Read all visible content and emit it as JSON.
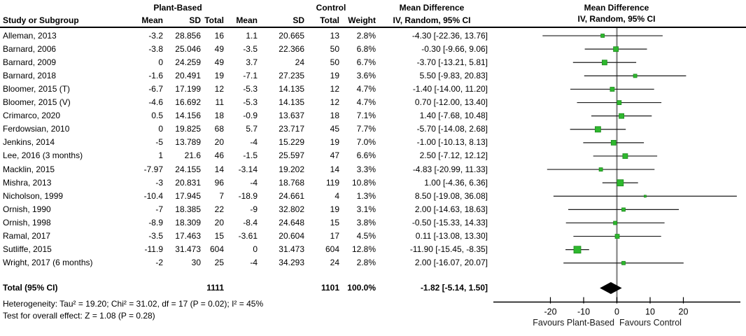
{
  "header": {
    "group1": "Plant-Based",
    "group2": "Control",
    "md_title": "Mean Difference",
    "md_subtitle": "IV, Random, 95% CI",
    "plot_title": "Mean Difference",
    "plot_subtitle": "IV, Random, 95% CI",
    "col_study": "Study or Subgroup",
    "col_mean": "Mean",
    "col_sd": "SD",
    "col_total": "Total",
    "col_weight": "Weight"
  },
  "colors": {
    "marker_green": "#2eb82e",
    "marker_green_border": "#1e8a1e",
    "zero_line_gray": "#7d7d7d",
    "ci_line": "#1a1a1a",
    "diamond": "#000000"
  },
  "total": {
    "label": "Total (95% CI)",
    "n1": "1111",
    "n2": "1101",
    "weight": "100.0%",
    "ci": "-1.82 [-5.14, 1.50]",
    "md": -1.82,
    "lo": -5.14,
    "hi": 1.5
  },
  "footer": {
    "heterogeneity": "Heterogeneity: Tau² = 19.20; Chi² = 31.02, df = 17 (P = 0.02); I² = 45%",
    "overall_effect": "Test for overall effect: Z = 1.08 (P = 0.28)"
  },
  "axis": {
    "ticks": [
      -20,
      -10,
      0,
      10,
      20
    ],
    "favours_left": "Favours Plant-Based",
    "favours_right": "Favours Control"
  },
  "chart_data": {
    "type": "forest",
    "title": "Mean Difference",
    "estimator": "IV, Random, 95% CI",
    "xlim": [
      -25,
      38
    ],
    "zero_line": 0,
    "x_ticks": [
      -20,
      -10,
      0,
      10,
      20
    ],
    "studies": [
      {
        "name": "Alleman, 2013",
        "pb": [
          "-3.2",
          "28.856",
          "16"
        ],
        "ct": [
          "1.1",
          "20.665",
          "13"
        ],
        "weight": "2.8%",
        "ci": "-4.30 [-22.36, 13.76]",
        "md": -4.3,
        "lo": -22.36,
        "hi": 13.76,
        "w": 2.8
      },
      {
        "name": "Barnard, 2006",
        "pb": [
          "-3.8",
          "25.046",
          "49"
        ],
        "ct": [
          "-3.5",
          "22.366",
          "50"
        ],
        "weight": "6.8%",
        "ci": "-0.30 [-9.66, 9.06]",
        "md": -0.3,
        "lo": -9.66,
        "hi": 9.06,
        "w": 6.8
      },
      {
        "name": "Barnard, 2009",
        "pb": [
          "0",
          "24.259",
          "49"
        ],
        "ct": [
          "3.7",
          "24",
          "50"
        ],
        "weight": "6.7%",
        "ci": "-3.70 [-13.21, 5.81]",
        "md": -3.7,
        "lo": -13.21,
        "hi": 5.81,
        "w": 6.7
      },
      {
        "name": "Barnard, 2018",
        "pb": [
          "-1.6",
          "20.491",
          "19"
        ],
        "ct": [
          "-7.1",
          "27.235",
          "19"
        ],
        "weight": "3.6%",
        "ci": "5.50 [-9.83, 20.83]",
        "md": 5.5,
        "lo": -9.83,
        "hi": 20.83,
        "w": 3.6
      },
      {
        "name": "Bloomer, 2015 (T)",
        "pb": [
          "-6.7",
          "17.199",
          "12"
        ],
        "ct": [
          "-5.3",
          "14.135",
          "12"
        ],
        "weight": "4.7%",
        "ci": "-1.40 [-14.00, 11.20]",
        "md": -1.4,
        "lo": -14.0,
        "hi": 11.2,
        "w": 4.7
      },
      {
        "name": "Bloomer, 2015 (V)",
        "pb": [
          "-4.6",
          "16.692",
          "11"
        ],
        "ct": [
          "-5.3",
          "14.135",
          "12"
        ],
        "weight": "4.7%",
        "ci": "0.70 [-12.00, 13.40]",
        "md": 0.7,
        "lo": -12.0,
        "hi": 13.4,
        "w": 4.7
      },
      {
        "name": "Crimarco, 2020",
        "pb": [
          "0.5",
          "14.156",
          "18"
        ],
        "ct": [
          "-0.9",
          "13.637",
          "18"
        ],
        "weight": "7.1%",
        "ci": "1.40 [-7.68, 10.48]",
        "md": 1.4,
        "lo": -7.68,
        "hi": 10.48,
        "w": 7.1
      },
      {
        "name": "Ferdowsian, 2010",
        "pb": [
          "0",
          "19.825",
          "68"
        ],
        "ct": [
          "5.7",
          "23.717",
          "45"
        ],
        "weight": "7.7%",
        "ci": "-5.70 [-14.08, 2.68]",
        "md": -5.7,
        "lo": -14.08,
        "hi": 2.68,
        "w": 7.7
      },
      {
        "name": "Jenkins, 2014",
        "pb": [
          "-5",
          "13.789",
          "20"
        ],
        "ct": [
          "-4",
          "15.229",
          "19"
        ],
        "weight": "7.0%",
        "ci": "-1.00 [-10.13, 8.13]",
        "md": -1.0,
        "lo": -10.13,
        "hi": 8.13,
        "w": 7.0
      },
      {
        "name": "Lee, 2016 (3 months)",
        "pb": [
          "1",
          "21.6",
          "46"
        ],
        "ct": [
          "-1.5",
          "25.597",
          "47"
        ],
        "weight": "6.6%",
        "ci": "2.50 [-7.12, 12.12]",
        "md": 2.5,
        "lo": -7.12,
        "hi": 12.12,
        "w": 6.6
      },
      {
        "name": "Macklin, 2015",
        "pb": [
          "-7.97",
          "24.155",
          "14"
        ],
        "ct": [
          "-3.14",
          "19.202",
          "14"
        ],
        "weight": "3.3%",
        "ci": "-4.83 [-20.99, 11.33]",
        "md": -4.83,
        "lo": -20.99,
        "hi": 11.33,
        "w": 3.3
      },
      {
        "name": "Mishra, 2013",
        "pb": [
          "-3",
          "20.831",
          "96"
        ],
        "ct": [
          "-4",
          "18.768",
          "119"
        ],
        "weight": "10.8%",
        "ci": "1.00 [-4.36, 6.36]",
        "md": 1.0,
        "lo": -4.36,
        "hi": 6.36,
        "w": 10.8
      },
      {
        "name": "Nicholson, 1999",
        "pb": [
          "-10.4",
          "17.945",
          "7"
        ],
        "ct": [
          "-18.9",
          "24.661",
          "4"
        ],
        "weight": "1.3%",
        "ci": "8.50 [-19.08, 36.08]",
        "md": 8.5,
        "lo": -19.08,
        "hi": 36.08,
        "w": 1.3
      },
      {
        "name": "Ornish, 1990",
        "pb": [
          "-7",
          "18.385",
          "22"
        ],
        "ct": [
          "-9",
          "32.802",
          "19"
        ],
        "weight": "3.1%",
        "ci": "2.00 [-14.63, 18.63]",
        "md": 2.0,
        "lo": -14.63,
        "hi": 18.63,
        "w": 3.1
      },
      {
        "name": "Ornish, 1998",
        "pb": [
          "-8.9",
          "18.309",
          "20"
        ],
        "ct": [
          "-8.4",
          "24.648",
          "15"
        ],
        "weight": "3.8%",
        "ci": "-0.50 [-15.33, 14.33]",
        "md": -0.5,
        "lo": -15.33,
        "hi": 14.33,
        "w": 3.8
      },
      {
        "name": "Ramal, 2017",
        "pb": [
          "-3.5",
          "17.463",
          "15"
        ],
        "ct": [
          "-3.61",
          "20.604",
          "17"
        ],
        "weight": "4.5%",
        "ci": "0.11 [-13.08, 13.30]",
        "md": 0.11,
        "lo": -13.08,
        "hi": 13.3,
        "w": 4.5
      },
      {
        "name": "Sutliffe, 2015",
        "pb": [
          "-11.9",
          "31.473",
          "604"
        ],
        "ct": [
          "0",
          "31.473",
          "604"
        ],
        "weight": "12.8%",
        "ci": "-11.90 [-15.45, -8.35]",
        "md": -11.9,
        "lo": -15.45,
        "hi": -8.35,
        "w": 12.8
      },
      {
        "name": "Wright, 2017 (6 months)",
        "pb": [
          "-2",
          "30",
          "25"
        ],
        "ct": [
          "-4",
          "34.293",
          "24"
        ],
        "weight": "2.8%",
        "ci": "2.00 [-16.07, 20.07]",
        "md": 2.0,
        "lo": -16.07,
        "hi": 20.07,
        "w": 2.8
      }
    ],
    "total": {
      "md": -1.82,
      "lo": -5.14,
      "hi": 1.5,
      "label": "Total (95% CI)"
    },
    "footnotes": [
      "Heterogeneity: Tau² = 19.20; Chi² = 31.02, df = 17 (P = 0.02); I² = 45%",
      "Test for overall effect: Z = 1.08 (P = 0.28)"
    ]
  }
}
